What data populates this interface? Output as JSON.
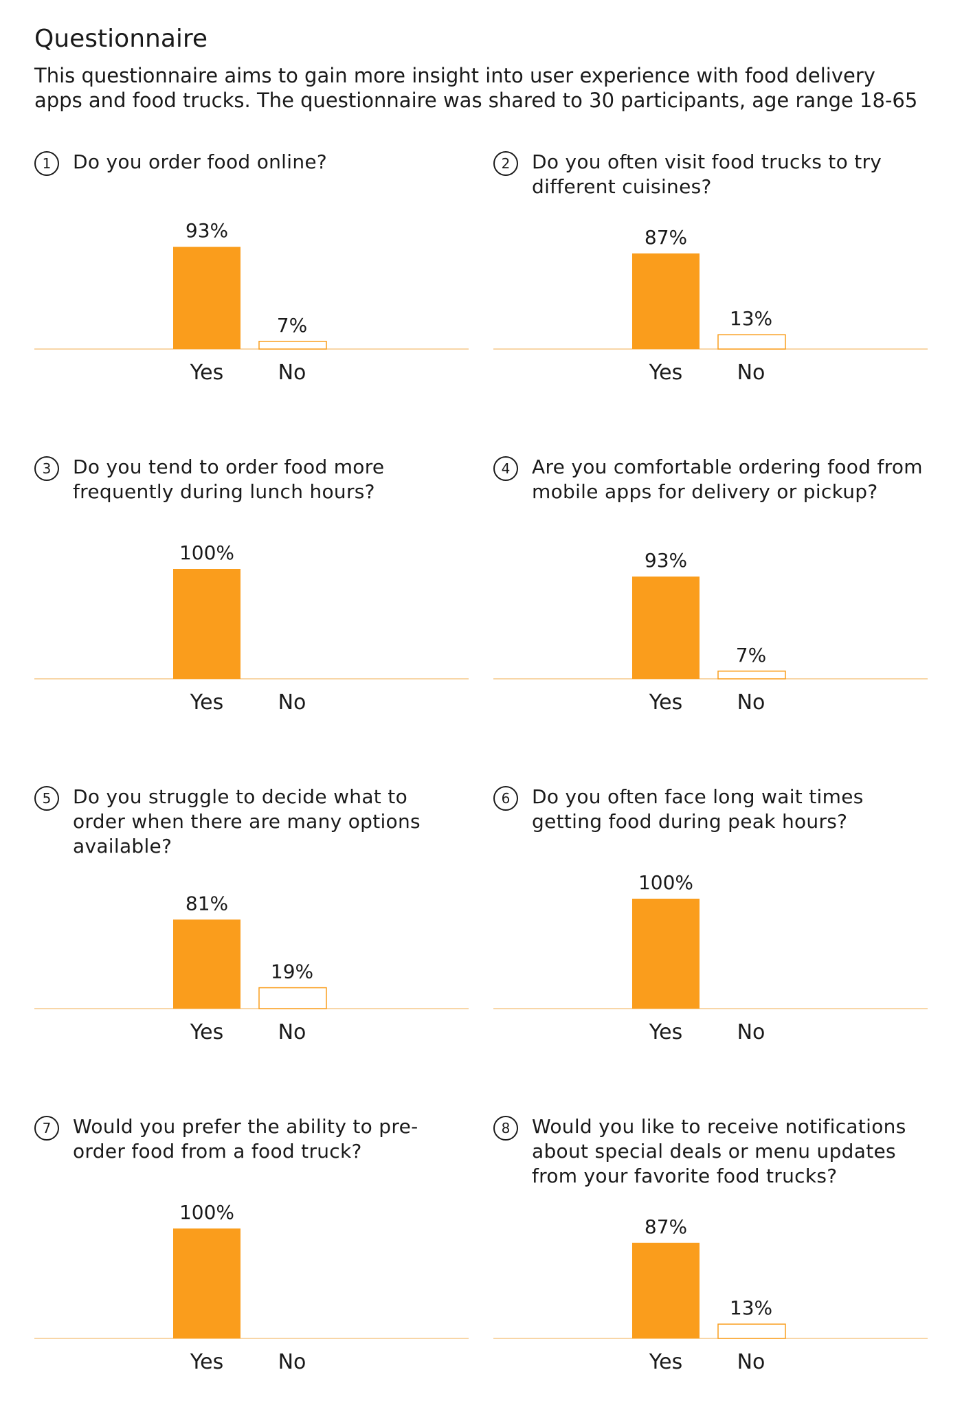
{
  "title": "Questionnaire",
  "intro": "This questionnaire aims to gain more insight into user experience with food delivery apps and food trucks. The questionnaire was shared to 30 participants, age range 18-65",
  "colors": {
    "bar": "#FA9D1C",
    "bar_outline": "#FA9D1C",
    "axis": "#F5C98A",
    "text": "#1a1a1a"
  },
  "chart_data": [
    {
      "type": "bar",
      "number": "1",
      "title": "Do you order food online?",
      "categories": [
        "Yes",
        "No"
      ],
      "values": [
        93,
        7
      ],
      "labels": [
        "93%",
        "7%"
      ],
      "ylim": [
        0,
        100
      ]
    },
    {
      "type": "bar",
      "number": "2",
      "title": "Do you often visit food trucks to try different cuisines?",
      "categories": [
        "Yes",
        "No"
      ],
      "values": [
        87,
        13
      ],
      "labels": [
        "87%",
        "13%"
      ],
      "ylim": [
        0,
        100
      ]
    },
    {
      "type": "bar",
      "number": "3",
      "title": "Do you tend to order food more frequently during lunch hours?",
      "categories": [
        "Yes",
        "No"
      ],
      "values": [
        100,
        0
      ],
      "labels": [
        "100%",
        ""
      ],
      "ylim": [
        0,
        100
      ]
    },
    {
      "type": "bar",
      "number": "4",
      "title": "Are you comfortable ordering food from mobile apps for delivery or pickup?",
      "categories": [
        "Yes",
        "No"
      ],
      "values": [
        93,
        7
      ],
      "labels": [
        "93%",
        "7%"
      ],
      "ylim": [
        0,
        100
      ]
    },
    {
      "type": "bar",
      "number": "5",
      "title": "Do you struggle to decide what to order when there are many options available?",
      "categories": [
        "Yes",
        "No"
      ],
      "values": [
        81,
        19
      ],
      "labels": [
        "81%",
        "19%"
      ],
      "ylim": [
        0,
        100
      ]
    },
    {
      "type": "bar",
      "number": "6",
      "title": "Do you often face long wait times getting food during peak hours?",
      "categories": [
        "Yes",
        "No"
      ],
      "values": [
        100,
        0
      ],
      "labels": [
        "100%",
        ""
      ],
      "ylim": [
        0,
        100
      ]
    },
    {
      "type": "bar",
      "number": "7",
      "title": "Would you prefer the ability to pre-order food from a food truck?",
      "categories": [
        "Yes",
        "No"
      ],
      "values": [
        100,
        0
      ],
      "labels": [
        "100%",
        ""
      ],
      "ylim": [
        0,
        100
      ]
    },
    {
      "type": "bar",
      "number": "8",
      "title": "Would you like to receive notifications about special deals or menu updates from your favorite food trucks?",
      "categories": [
        "Yes",
        "No"
      ],
      "values": [
        87,
        13
      ],
      "labels": [
        "87%",
        "13%"
      ],
      "ylim": [
        0,
        100
      ]
    }
  ]
}
